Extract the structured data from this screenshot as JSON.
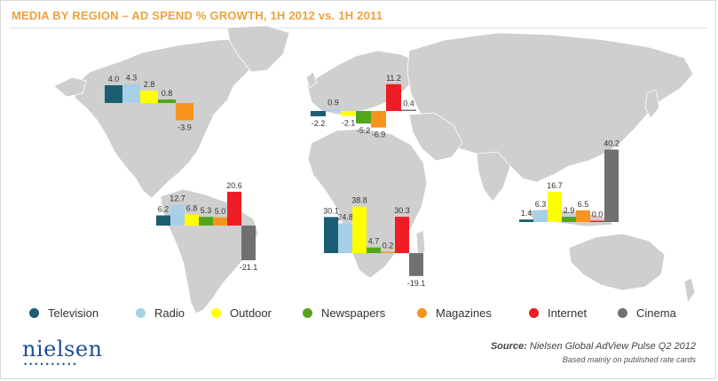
{
  "chart_data": {
    "type": "bar",
    "title": "MEDIA BY REGION – AD SPEND % GROWTH, 1H 2012 vs. 1H 2011",
    "series_names": [
      "Television",
      "Radio",
      "Outdoor",
      "Newspapers",
      "Magazines",
      "Internet",
      "Cinema"
    ],
    "colors": {
      "Television": "#1b5e74",
      "Radio": "#a8cfe8",
      "Outdoor": "#ffff00",
      "Newspapers": "#55a51c",
      "Magazines": "#f7941d",
      "Internet": "#ee1c25",
      "Cinema": "#707070"
    },
    "regions": [
      {
        "region": "North America",
        "values": [
          4.0,
          4.3,
          2.8,
          0.8,
          -3.9
        ],
        "labels": [
          "4.0",
          "4.3",
          "2.8",
          "0.8",
          "-3.9"
        ],
        "series": [
          "Television",
          "Radio",
          "Outdoor",
          "Newspapers",
          "Magazines"
        ]
      },
      {
        "region": "Europe",
        "values": [
          -2.2,
          0.9,
          -2.1,
          -5.2,
          -6.9,
          11.2,
          0.4
        ],
        "labels": [
          "-2.2",
          "0.9",
          "-2.1",
          "-5.2",
          "-6.9",
          "11.2",
          "0.4"
        ],
        "series": [
          "Television",
          "Radio",
          "Outdoor",
          "Newspapers",
          "Magazines",
          "Internet",
          "Cinema"
        ]
      },
      {
        "region": "Latin America",
        "values": [
          6.2,
          12.7,
          6.8,
          5.3,
          5.0,
          20.6,
          -21.1
        ],
        "labels": [
          "6.2",
          "12.7",
          "6.8",
          "5.3",
          "5.0",
          "20.6",
          "-21.1"
        ],
        "series": [
          "Television",
          "Radio",
          "Outdoor",
          "Newspapers",
          "Magazines",
          "Internet",
          "Cinema"
        ]
      },
      {
        "region": "Middle East & Africa",
        "values": [
          30.1,
          24.8,
          38.8,
          4.7,
          0.2,
          30.3,
          -19.1
        ],
        "labels": [
          "30.1",
          "24.8",
          "38.8",
          "4.7",
          "0.2",
          "30.3",
          "-19.1"
        ],
        "series": [
          "Television",
          "Radio",
          "Outdoor",
          "Newspapers",
          "Magazines",
          "Internet",
          "Cinema"
        ]
      },
      {
        "region": "Asia Pacific",
        "values": [
          1.4,
          6.3,
          16.7,
          2.9,
          6.5,
          0.0,
          40.2
        ],
        "labels": [
          "1.4",
          "6.3",
          "16.7",
          "2.9",
          "6.5",
          "0.0",
          "40.2"
        ],
        "series": [
          "Television",
          "Radio",
          "Outdoor",
          "Newspapers",
          "Magazines",
          "Internet",
          "Cinema"
        ]
      }
    ]
  },
  "legend": [
    {
      "label": "Television",
      "color": "#1b5e74"
    },
    {
      "label": "Radio",
      "color": "#a8cfe8"
    },
    {
      "label": "Outdoor",
      "color": "#ffff00"
    },
    {
      "label": "Newspapers",
      "color": "#55a51c"
    },
    {
      "label": "Magazines",
      "color": "#f7941d"
    },
    {
      "label": "Internet",
      "color": "#ee1c25"
    },
    {
      "label": "Cinema",
      "color": "#707070"
    }
  ],
  "logo": {
    "text": "nielsen",
    "dots": "••••••••••"
  },
  "source": {
    "bold": "Source:",
    "text": "Nielsen Global AdView Pulse Q2 2012",
    "note": "Based mainly on published rate cards"
  },
  "colors": {
    "title": "#f0a03a",
    "map": "#cfcfcf",
    "logo": "#1f4e96"
  }
}
